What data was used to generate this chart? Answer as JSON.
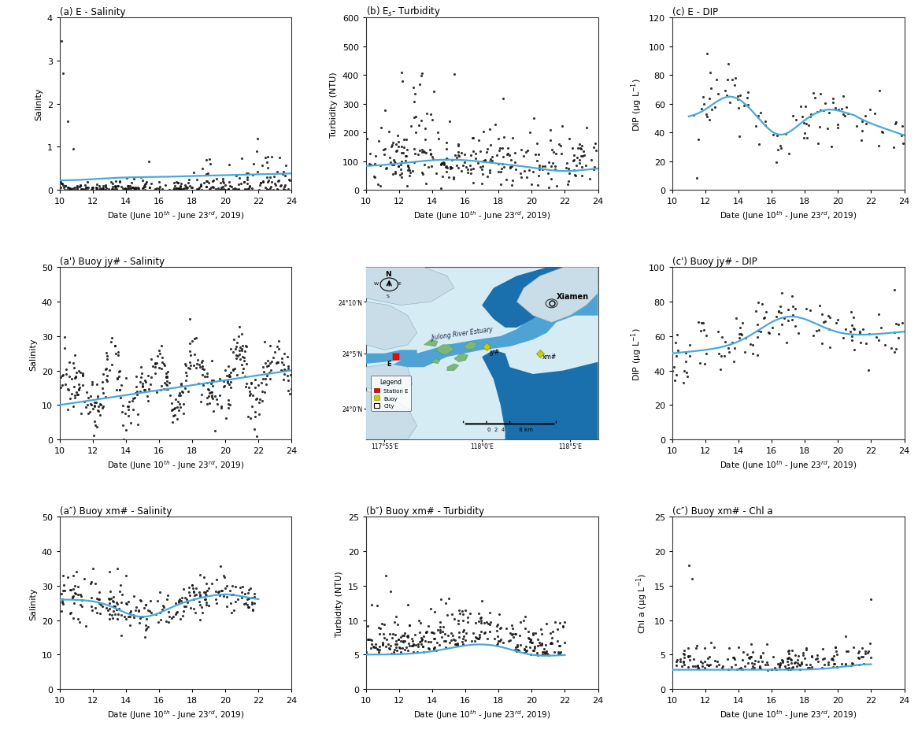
{
  "panels": {
    "a": {
      "title": "(a) E - Salinity",
      "xlabel": "Date (June 10$^{th}$ - June 23$^{rd}$, 2019)",
      "ylabel": "Salinity",
      "xlim": [
        10,
        24
      ],
      "ylim": [
        0,
        4
      ],
      "yticks": [
        0,
        1,
        2,
        3,
        4
      ],
      "xticks": [
        10,
        12,
        14,
        16,
        18,
        20,
        22,
        24
      ]
    },
    "b": {
      "title": "(b) E$_{s}$- Turbidity",
      "xlabel": "Date (June 10$^{th}$ - June 23$^{rd}$, 2019)",
      "ylabel": "Turbidity (NTU)",
      "xlim": [
        10,
        24
      ],
      "ylim": [
        0,
        600
      ],
      "yticks": [
        0,
        100,
        200,
        300,
        400,
        500,
        600
      ],
      "xticks": [
        10,
        12,
        14,
        16,
        18,
        20,
        22,
        24
      ]
    },
    "c": {
      "title": "(c) E - DIP",
      "xlabel": "Date (June 10$^{th}$ - June 23$^{rd}$, 2019)",
      "ylabel": "DIP (μg L$^{-1}$)",
      "xlim": [
        10,
        24
      ],
      "ylim": [
        0,
        120
      ],
      "yticks": [
        0,
        20,
        40,
        60,
        80,
        100,
        120
      ],
      "xticks": [
        10,
        12,
        14,
        16,
        18,
        20,
        22,
        24
      ]
    },
    "a_prime": {
      "title": "(a') Buoy jy# - Salinity",
      "xlabel": "Date (June 10$^{th}$ - June 23$^{rd}$, 2019)",
      "ylabel": "Salinity",
      "xlim": [
        10,
        24
      ],
      "ylim": [
        0,
        50
      ],
      "yticks": [
        0,
        10,
        20,
        30,
        40,
        50
      ],
      "xticks": [
        10,
        12,
        14,
        16,
        18,
        20,
        22,
        24
      ]
    },
    "c_prime": {
      "title": "(c') Buoy jy# - DIP",
      "xlabel": "Date (June 10$^{th}$ - June 23$^{rd}$, 2019)",
      "ylabel": "DIP (μg L$^{-1}$)",
      "xlim": [
        10,
        24
      ],
      "ylim": [
        0,
        100
      ],
      "yticks": [
        0,
        20,
        40,
        60,
        80,
        100
      ],
      "xticks": [
        10,
        12,
        14,
        16,
        18,
        20,
        22,
        24
      ]
    },
    "a_double": {
      "title": "(a″) Buoy xm# - Salinity",
      "xlabel": "Date (June 10$^{th}$ - June 23$^{rd}$, 2019)",
      "ylabel": "Salinity",
      "xlim": [
        10,
        24
      ],
      "ylim": [
        0,
        50
      ],
      "yticks": [
        0,
        10,
        20,
        30,
        40,
        50
      ],
      "xticks": [
        10,
        12,
        14,
        16,
        18,
        20,
        22,
        24
      ]
    },
    "b_double": {
      "title": "(b″) Buoy xm# - Turbidity",
      "xlabel": "Date (June 10$^{th}$ - June 23$^{rd}$, 2019)",
      "ylabel": "Turbidity (NTU)",
      "xlim": [
        10,
        24
      ],
      "ylim": [
        0,
        25
      ],
      "yticks": [
        0,
        5,
        10,
        15,
        20,
        25
      ],
      "xticks": [
        10,
        12,
        14,
        16,
        18,
        20,
        22,
        24
      ]
    },
    "c_double": {
      "title": "(c″) Buoy xm# - Chl a",
      "xlabel": "Date (June 10$^{th}$ - June 23$^{rd}$, 2019)",
      "ylabel": "Chl a (μg L$^{-1}$)",
      "xlim": [
        10,
        24
      ],
      "ylim": [
        0,
        25
      ],
      "yticks": [
        0,
        5,
        10,
        15,
        20,
        25
      ],
      "xticks": [
        10,
        12,
        14,
        16,
        18,
        20,
        22,
        24
      ]
    }
  },
  "curve_color": "#4aa8d8",
  "scatter_color": "#111111",
  "scatter_size": 5,
  "background_color": "#ffffff",
  "map": {
    "bg_color": "#d6ecf5",
    "water_deep": "#1a6fad",
    "water_mid": "#4ea3d4",
    "water_light": "#a8d4e8",
    "land_color": "#c8dde8",
    "island_color": "#7ab87a",
    "coord_top": "117·55'E      118·0'E      118·5'E",
    "lat_labels": [
      "24·10'N",
      "24·5'N",
      "24·0'N"
    ],
    "xiamen_label": "Xiamen",
    "estuary_label": "Jiulong River Estuary",
    "station_e": "E",
    "buoy_jy": "jy#",
    "buoy_xm": "xm#"
  }
}
